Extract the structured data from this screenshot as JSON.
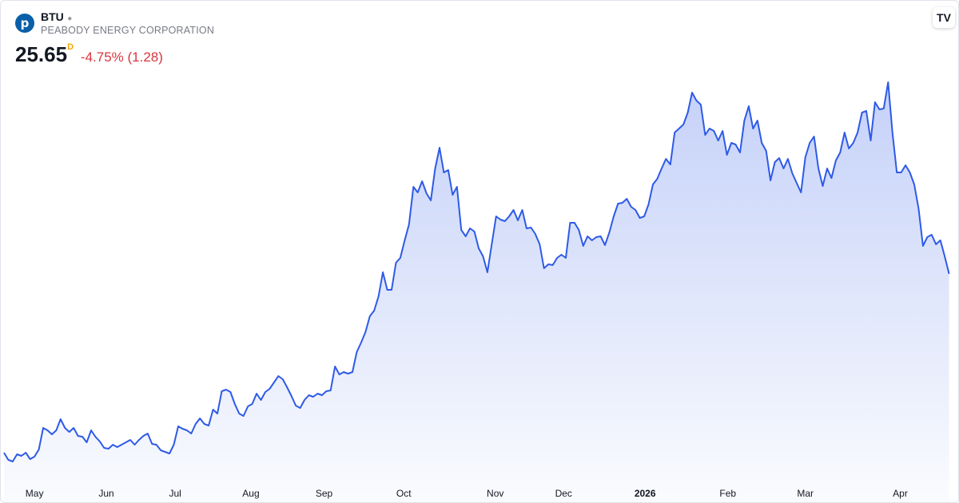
{
  "header": {
    "symbol": "BTU",
    "company": "PEABODY ENERGY CORPORATION",
    "price": "25.65",
    "interval": "D",
    "change": "-4.75% (1.28)"
  },
  "chart_data": {
    "type": "area",
    "color": "#2e5ae6",
    "values": [
      12.21,
      11.67,
      11.55,
      12.09,
      11.97,
      12.21,
      11.73,
      11.91,
      12.45,
      14.07,
      13.89,
      13.59,
      13.89,
      14.73,
      14.07,
      13.77,
      14.07,
      13.47,
      13.41,
      12.99,
      13.89,
      13.41,
      13.05,
      12.57,
      12.51,
      12.81,
      12.63,
      12.81,
      12.99,
      13.17,
      12.81,
      13.17,
      13.47,
      13.65,
      12.87,
      12.81,
      12.39,
      12.27,
      12.15,
      12.81,
      14.19,
      14.01,
      13.89,
      13.65,
      14.37,
      14.79,
      14.37,
      14.25,
      15.45,
      15.15,
      16.83,
      16.95,
      16.77,
      15.87,
      15.15,
      14.97,
      15.69,
      15.87,
      16.65,
      16.17,
      16.77,
      17.01,
      17.49,
      17.97,
      17.73,
      17.13,
      16.47,
      15.75,
      15.57,
      16.17,
      16.53,
      16.41,
      16.65,
      16.53,
      16.83,
      16.89,
      18.69,
      18.09,
      18.27,
      18.15,
      18.27,
      19.77,
      20.49,
      21.27,
      22.47,
      22.89,
      23.97,
      25.77,
      24.45,
      24.45,
      26.49,
      26.85,
      28.17,
      29.37,
      32.19,
      31.77,
      32.61,
      31.71,
      31.17,
      33.57,
      35.13,
      33.27,
      33.45,
      31.59,
      32.19,
      28.95,
      28.47,
      29.07,
      28.83,
      27.57,
      26.97,
      25.77,
      27.87,
      29.97,
      29.73,
      29.61,
      29.97,
      30.45,
      29.67,
      30.45,
      29.07,
      29.13,
      28.65,
      27.87,
      26.07,
      26.37,
      26.31,
      26.85,
      27.09,
      26.85,
      29.49,
      29.49,
      28.95,
      27.75,
      28.47,
      28.17,
      28.41,
      28.47,
      27.81,
      28.77,
      29.97,
      30.93,
      30.99,
      31.29,
      30.69,
      30.45,
      29.85,
      29.97,
      30.87,
      32.37,
      32.79,
      33.57,
      34.29,
      33.87,
      36.27,
      36.57,
      36.87,
      37.77,
      39.27,
      38.67,
      38.37,
      36.09,
      36.57,
      36.39,
      35.67,
      36.39,
      34.59,
      35.49,
      35.37,
      34.77,
      37.17,
      38.25,
      36.57,
      37.17,
      35.49,
      34.89,
      32.67,
      34.05,
      34.35,
      33.57,
      34.29,
      33.21,
      32.49,
      31.77,
      34.41,
      35.49,
      35.97,
      33.57,
      32.25,
      33.57,
      32.85,
      34.17,
      34.77,
      36.27,
      35.07,
      35.49,
      36.27,
      37.77,
      37.89,
      35.67,
      38.55,
      38.01,
      38.07,
      40.05,
      36.27,
      33.27,
      33.27,
      33.81,
      33.27,
      32.37,
      30.57,
      27.75,
      28.41,
      28.59,
      27.87,
      28.17,
      26.97,
      25.65
    ],
    "xlim": [
      0,
      218
    ],
    "ylim": [
      10.17,
      40.77
    ],
    "xticks": [
      {
        "value": 7,
        "label": "May"
      },
      {
        "value": 23.5,
        "label": "Jun"
      },
      {
        "value": 39.3,
        "label": "Jul"
      },
      {
        "value": 56.7,
        "label": "Aug"
      },
      {
        "value": 73.5,
        "label": "Sep"
      },
      {
        "value": 91.8,
        "label": "Oct"
      },
      {
        "value": 112.8,
        "label": "Nov"
      },
      {
        "value": 128.5,
        "label": "Dec"
      },
      {
        "value": 147.2,
        "label": "2026"
      },
      {
        "value": 166.2,
        "label": "Feb"
      },
      {
        "value": 184,
        "label": "Mar"
      },
      {
        "value": 205.8,
        "label": "Apr"
      }
    ]
  }
}
